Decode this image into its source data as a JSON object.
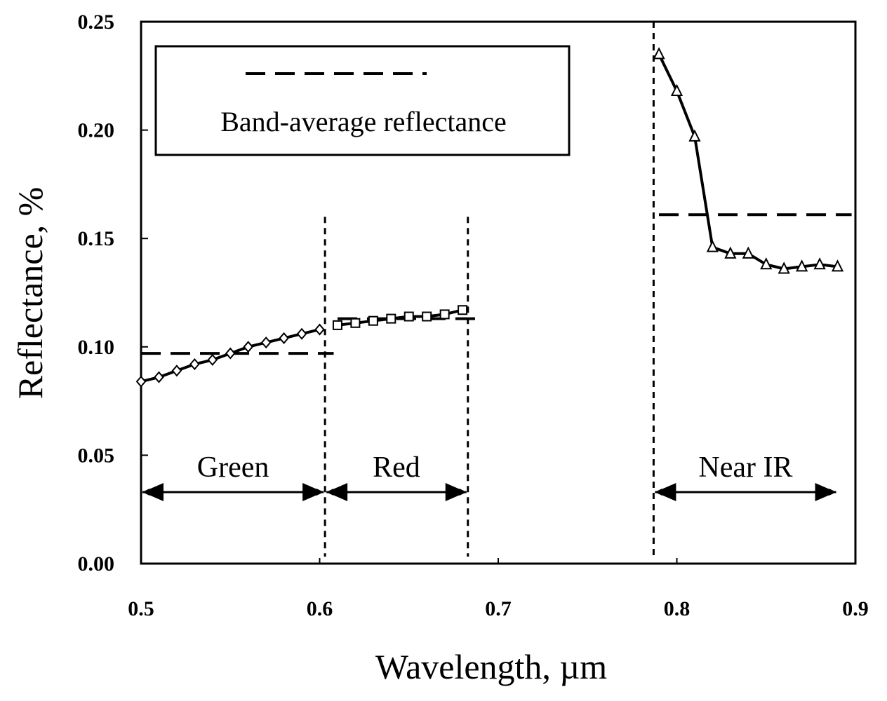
{
  "chart_data": {
    "type": "line",
    "title": "",
    "xlabel": "Wavelength, µm",
    "ylabel": "Reflectance, %",
    "xlim": [
      0.5,
      0.9
    ],
    "ylim": [
      0,
      0.25
    ],
    "xticks": [
      "0.5",
      "0.6",
      "0.7",
      "0.8",
      "0.9"
    ],
    "yticks": [
      "0.00",
      "0.05",
      "0.10",
      "0.15",
      "0.20",
      "0.25"
    ],
    "grid": false,
    "legend": {
      "position": "top-left",
      "entry": "Band-average reflectance"
    },
    "series": [
      {
        "band": "green",
        "marker": "diamond",
        "x": [
          0.5,
          0.51,
          0.52,
          0.53,
          0.54,
          0.55,
          0.56,
          0.57,
          0.58,
          0.59,
          0.6
        ],
        "y": [
          0.084,
          0.086,
          0.089,
          0.092,
          0.094,
          0.097,
          0.1,
          0.102,
          0.104,
          0.106,
          0.108
        ]
      },
      {
        "band": "red",
        "marker": "square",
        "x": [
          0.61,
          0.62,
          0.63,
          0.64,
          0.65,
          0.66,
          0.67,
          0.68
        ],
        "y": [
          0.11,
          0.111,
          0.112,
          0.113,
          0.114,
          0.114,
          0.115,
          0.117
        ]
      },
      {
        "band": "near-ir",
        "marker": "triangle",
        "x": [
          0.79,
          0.8,
          0.81,
          0.82,
          0.83,
          0.84,
          0.85,
          0.86,
          0.87,
          0.88,
          0.89
        ],
        "y": [
          0.235,
          0.218,
          0.197,
          0.146,
          0.143,
          0.143,
          0.138,
          0.136,
          0.137,
          0.138,
          0.137
        ]
      }
    ],
    "band_averages": [
      {
        "band": "green",
        "x": [
          0.5,
          0.6
        ],
        "y": 0.097
      },
      {
        "band": "red",
        "x": [
          0.61,
          0.68
        ],
        "y": 0.113
      },
      {
        "band": "near-ir",
        "x": [
          0.79,
          0.89
        ],
        "y": 0.161
      }
    ],
    "band_boundaries": [
      {
        "x": 0.603,
        "y_range": [
          0,
          0.16
        ]
      },
      {
        "x": 0.683,
        "y_range": [
          0,
          0.16
        ]
      },
      {
        "x": 0.787,
        "y_range": [
          0,
          0.25
        ]
      }
    ],
    "annotations": [
      {
        "label": "Green",
        "x_range": [
          0.5,
          0.603
        ],
        "y": 0.033
      },
      {
        "label": "Red",
        "x_range": [
          0.603,
          0.683
        ],
        "y": 0.033
      },
      {
        "label": "Near IR",
        "x_range": [
          0.787,
          0.89
        ],
        "y": 0.033
      }
    ]
  }
}
